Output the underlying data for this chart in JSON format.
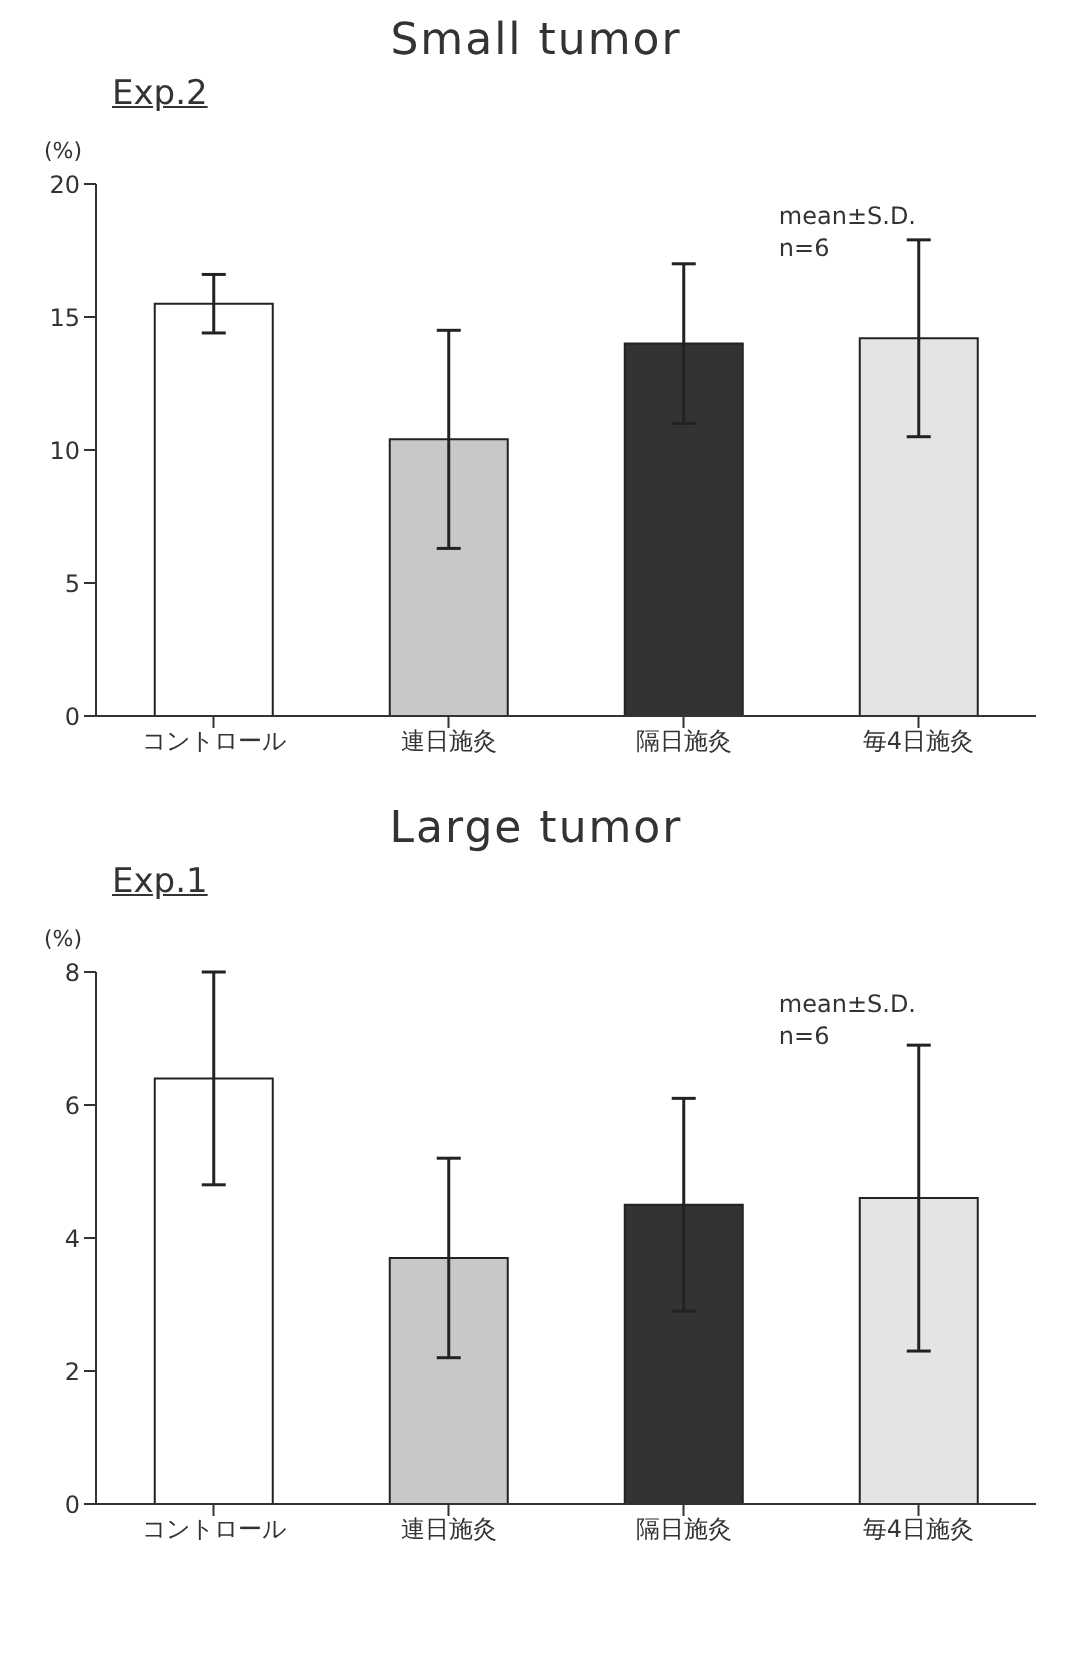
{
  "chart_data": [
    {
      "type": "bar",
      "title": "Small tumor",
      "subtitle": "Exp.2",
      "ylabel": "(%)",
      "categories": [
        "コントロール",
        "連日施灸",
        "隔日施灸",
        "毎4日施灸"
      ],
      "values": [
        15.5,
        10.4,
        14.0,
        14.2
      ],
      "errors": [
        1.1,
        4.1,
        3.0,
        3.7
      ],
      "colors": [
        "#ffffff",
        "#c8c8c8",
        "#333333",
        "#e4e4e4"
      ],
      "ylim": [
        0,
        20
      ],
      "yticks": [
        0,
        5,
        10,
        15,
        20
      ],
      "grid": false,
      "legend": false,
      "annotations": [
        "mean±S.D.",
        "n=6"
      ]
    },
    {
      "type": "bar",
      "title": "Large tumor",
      "subtitle": "Exp.1",
      "ylabel": "(%)",
      "categories": [
        "コントロール",
        "連日施灸",
        "隔日施灸",
        "毎4日施灸"
      ],
      "values": [
        6.4,
        3.7,
        4.5,
        4.6
      ],
      "errors": [
        1.6,
        1.5,
        1.6,
        2.3
      ],
      "colors": [
        "#ffffff",
        "#c8c8c8",
        "#333333",
        "#e4e4e4"
      ],
      "ylim": [
        0,
        8
      ],
      "yticks": [
        0,
        2,
        4,
        6,
        8
      ],
      "grid": false,
      "legend": false,
      "annotations": [
        "mean±S.D.",
        "n=6"
      ]
    }
  ]
}
